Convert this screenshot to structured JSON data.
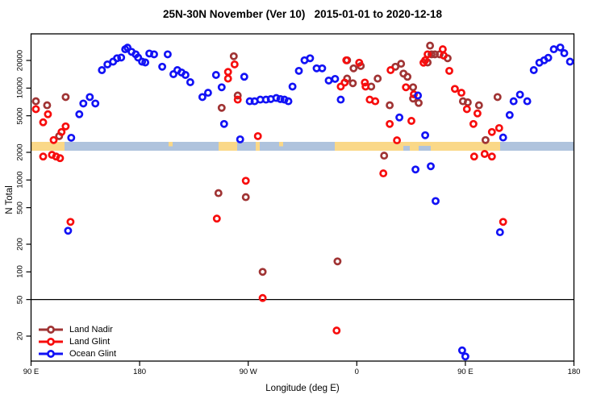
{
  "title": "25N-30N November (Ver 10)   2015-01-01 to 2020-12-18",
  "colors": {
    "land_nadir": "#A03434",
    "land_glint": "#F70D0D",
    "ocean_glint": "#1212F5",
    "band_ocean": "#AFC3DD",
    "band_land": "#FAD888",
    "axis": "#000000"
  },
  "axes": {
    "y_label": "N Total",
    "x_label": "Longitude (deg E)",
    "y_ticks": [
      {
        "value": 20000,
        "label": "20000"
      },
      {
        "value": 10000,
        "label": "10000"
      },
      {
        "value": 5000,
        "label": "5000"
      },
      {
        "value": 2000,
        "label": "2000"
      },
      {
        "value": 1000,
        "label": "1000"
      },
      {
        "value": 500,
        "label": "500"
      },
      {
        "value": 200,
        "label": "200"
      },
      {
        "value": 100,
        "label": "100"
      },
      {
        "value": 50,
        "label": "50"
      },
      {
        "value": 20,
        "label": "20"
      }
    ],
    "x_ticks": [
      {
        "t": 0,
        "label": "90 E"
      },
      {
        "t": 90,
        "label": "180"
      },
      {
        "t": 180,
        "label": "90 W"
      },
      {
        "t": 270,
        "label": "0"
      },
      {
        "t": 360,
        "label": "90 E"
      },
      {
        "t": 450,
        "label": "180"
      }
    ]
  },
  "legend": {
    "items": [
      {
        "label": "Land Nadir",
        "series": "land_nadir"
      },
      {
        "label": "Land Glint",
        "series": "land_glint"
      },
      {
        "label": "Ocean Glint",
        "series": "ocean_glint"
      }
    ]
  },
  "map_band": {
    "y_top": 176,
    "height": 11,
    "land_segments": [
      [
        38.5,
        80
      ],
      [
        271,
        294
      ],
      [
        317,
        322
      ],
      [
        415,
        620
      ]
    ],
    "ocean_patches_lower": [
      [
        500,
        508
      ],
      [
        519,
        534
      ]
    ],
    "land_specks_upper": [
      [
        209,
        214
      ],
      [
        346,
        351
      ]
    ]
  },
  "chart_data": {
    "type": "scatter",
    "x_axis": {
      "unit": "deg along axis from 90E eastward",
      "range_deg": [
        0,
        450
      ],
      "tick_labels": [
        "90 E",
        "180",
        "90 W",
        "0",
        "90 E",
        "180"
      ]
    },
    "y_axis": {
      "scale": "log",
      "label": "N Total",
      "approx_range": [
        11,
        39000
      ]
    },
    "ref_line_n": 50,
    "series": [
      {
        "name": "Land Nadir",
        "color_key": "land_nadir",
        "points": [
          [
            4,
            7200
          ],
          [
            13.3,
            6500
          ],
          [
            28.7,
            8000
          ],
          [
            23.3,
            3000
          ],
          [
            155.3,
            720
          ],
          [
            158,
            6100
          ],
          [
            168,
            22200
          ],
          [
            171.3,
            8300
          ],
          [
            178,
            650
          ],
          [
            192,
            100
          ],
          [
            254,
            130
          ],
          [
            262,
            20100
          ],
          [
            262,
            12700
          ],
          [
            266.7,
            11300
          ],
          [
            267.3,
            16400
          ],
          [
            273.3,
            17400
          ],
          [
            282,
            10400
          ],
          [
            287.3,
            12700
          ],
          [
            292.7,
            1840
          ],
          [
            297.3,
            6500
          ],
          [
            302,
            17100
          ],
          [
            306.7,
            18400
          ],
          [
            308.7,
            14400
          ],
          [
            312,
            13300
          ],
          [
            316.7,
            7700
          ],
          [
            316.7,
            10200
          ],
          [
            321.3,
            6900
          ],
          [
            328.7,
            19000
          ],
          [
            330.7,
            29000
          ],
          [
            332,
            23300
          ],
          [
            334.7,
            23300
          ],
          [
            338.7,
            23300
          ],
          [
            345.3,
            21100
          ],
          [
            358,
            7200
          ],
          [
            362,
            7000
          ],
          [
            371.3,
            6500
          ],
          [
            376.7,
            2720
          ],
          [
            386.7,
            8000
          ]
        ]
      },
      {
        "name": "Land Glint",
        "color_key": "land_glint",
        "points": [
          [
            4,
            5900
          ],
          [
            14,
            5200
          ],
          [
            10,
            4250
          ],
          [
            28.7,
            3830
          ],
          [
            25.3,
            3330
          ],
          [
            18.7,
            2720
          ],
          [
            10,
            1800
          ],
          [
            17.3,
            1880
          ],
          [
            20.7,
            1800
          ],
          [
            24,
            1730
          ],
          [
            32.7,
            350
          ],
          [
            163.3,
            15000
          ],
          [
            163.3,
            12700
          ],
          [
            168.7,
            18100
          ],
          [
            171.3,
            7500
          ],
          [
            188,
            3000
          ],
          [
            178,
            980
          ],
          [
            154,
            380
          ],
          [
            192,
            52
          ],
          [
            253.3,
            23
          ],
          [
            256.7,
            10400
          ],
          [
            260,
            11500
          ],
          [
            261.3,
            20100
          ],
          [
            272,
            18900
          ],
          [
            276.7,
            11500
          ],
          [
            277.3,
            10400
          ],
          [
            280.7,
            7500
          ],
          [
            285.3,
            7200
          ],
          [
            292,
            1180
          ],
          [
            297.3,
            4070
          ],
          [
            298,
            15700
          ],
          [
            303.3,
            2700
          ],
          [
            310.7,
            10200
          ],
          [
            315.3,
            4400
          ],
          [
            317.3,
            8550
          ],
          [
            325.3,
            18900
          ],
          [
            326.7,
            20100
          ],
          [
            328.7,
            23300
          ],
          [
            341.3,
            26500
          ],
          [
            342,
            22600
          ],
          [
            346.7,
            15400
          ],
          [
            351.3,
            9800
          ],
          [
            356.7,
            8900
          ],
          [
            361.3,
            5900
          ],
          [
            366.7,
            4070
          ],
          [
            370,
            5300
          ],
          [
            367.3,
            1800
          ],
          [
            376,
            1920
          ],
          [
            382,
            1800
          ],
          [
            382,
            3330
          ],
          [
            388,
            3670
          ],
          [
            391.3,
            350
          ]
        ]
      },
      {
        "name": "Ocean Glint",
        "color_key": "ocean_glint",
        "points": [
          [
            58.7,
            15700
          ],
          [
            63.3,
            18100
          ],
          [
            68,
            19400
          ],
          [
            71.3,
            21100
          ],
          [
            74.7,
            21500
          ],
          [
            78,
            26500
          ],
          [
            80,
            27600
          ],
          [
            83.3,
            24800
          ],
          [
            86.7,
            23300
          ],
          [
            88.7,
            21500
          ],
          [
            92,
            19400
          ],
          [
            94.7,
            19000
          ],
          [
            98,
            23800
          ],
          [
            102,
            23300
          ],
          [
            108.7,
            17100
          ],
          [
            113.3,
            23300
          ],
          [
            118,
            14200
          ],
          [
            121.3,
            15700
          ],
          [
            124.7,
            14800
          ],
          [
            128,
            13900
          ],
          [
            132,
            11600
          ],
          [
            142,
            8000
          ],
          [
            146.7,
            8900
          ],
          [
            153.3,
            13900
          ],
          [
            158,
            10200
          ],
          [
            160,
            4070
          ],
          [
            173.3,
            2770
          ],
          [
            176.7,
            13300
          ],
          [
            181.3,
            7200
          ],
          [
            185.3,
            7200
          ],
          [
            190,
            7500
          ],
          [
            194.7,
            7500
          ],
          [
            198.7,
            7600
          ],
          [
            203.3,
            7800
          ],
          [
            206.7,
            7600
          ],
          [
            210,
            7500
          ],
          [
            213.3,
            7200
          ],
          [
            216.7,
            10400
          ],
          [
            222,
            15400
          ],
          [
            226.7,
            20100
          ],
          [
            231.3,
            21100
          ],
          [
            236.7,
            16400
          ],
          [
            241.3,
            16400
          ],
          [
            246.7,
            12100
          ],
          [
            252,
            12600
          ],
          [
            256.7,
            7500
          ],
          [
            305.3,
            4800
          ],
          [
            318.7,
            1300
          ],
          [
            320.7,
            8300
          ],
          [
            326.7,
            3070
          ],
          [
            331.3,
            1410
          ],
          [
            335.3,
            590
          ],
          [
            357.3,
            14
          ],
          [
            360,
            12
          ],
          [
            388.7,
            270
          ],
          [
            391.3,
            2900
          ],
          [
            396.7,
            5100
          ],
          [
            400,
            7200
          ],
          [
            405.3,
            8500
          ],
          [
            411.3,
            7200
          ],
          [
            416.7,
            15700
          ],
          [
            421.3,
            18900
          ],
          [
            425.3,
            20100
          ],
          [
            428.7,
            21400
          ],
          [
            433.3,
            26500
          ],
          [
            438.7,
            27700
          ],
          [
            442,
            24000
          ],
          [
            446.7,
            19400
          ],
          [
            43.3,
            6800
          ],
          [
            48.7,
            8000
          ],
          [
            53.3,
            6800
          ],
          [
            40,
            5200
          ],
          [
            33.3,
            2880
          ],
          [
            30.7,
            280
          ]
        ]
      }
    ]
  }
}
